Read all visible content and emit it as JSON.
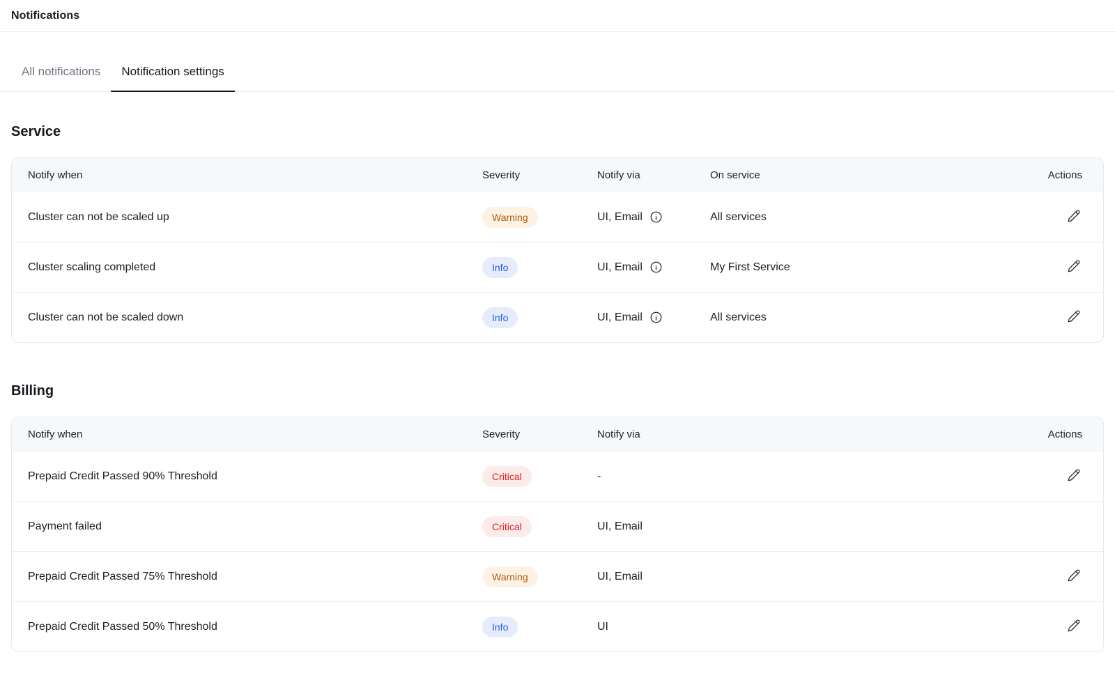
{
  "header": {
    "title": "Notifications"
  },
  "tabs": [
    {
      "label": "All notifications",
      "active": false
    },
    {
      "label": "Notification settings",
      "active": true
    }
  ],
  "severity_colors": {
    "Warning": {
      "text": "#b05a0f",
      "bg": "#fdf2e3"
    },
    "Info": {
      "text": "#2060e8",
      "bg": "#e6ecfc"
    },
    "Critical": {
      "text": "#dd2020",
      "bg": "#fcebea"
    }
  },
  "sections": [
    {
      "heading": "Service",
      "columns": [
        "Notify when",
        "Severity",
        "Notify via",
        "On service",
        "Actions"
      ],
      "rows": [
        {
          "notify_when": "Cluster can not be scaled up",
          "severity": "Warning",
          "notify_via": "UI, Email",
          "has_info_icon": true,
          "on_service": "All services",
          "has_edit": true
        },
        {
          "notify_when": "Cluster scaling completed",
          "severity": "Info",
          "notify_via": "UI, Email",
          "has_info_icon": true,
          "on_service": "My First Service",
          "has_edit": true
        },
        {
          "notify_when": "Cluster can not be scaled down",
          "severity": "Info",
          "notify_via": "UI, Email",
          "has_info_icon": true,
          "on_service": "All services",
          "has_edit": true
        }
      ]
    },
    {
      "heading": "Billing",
      "columns": [
        "Notify when",
        "Severity",
        "Notify via",
        "Actions"
      ],
      "rows": [
        {
          "notify_when": "Prepaid Credit Passed 90% Threshold",
          "severity": "Critical",
          "notify_via": "-",
          "has_info_icon": false,
          "has_edit": true
        },
        {
          "notify_when": "Payment failed",
          "severity": "Critical",
          "notify_via": "UI, Email",
          "has_info_icon": false,
          "has_edit": false
        },
        {
          "notify_when": "Prepaid Credit Passed 75% Threshold",
          "severity": "Warning",
          "notify_via": "UI, Email",
          "has_info_icon": false,
          "has_edit": true
        },
        {
          "notify_when": "Prepaid Credit Passed 50% Threshold",
          "severity": "Info",
          "notify_via": "UI",
          "has_info_icon": false,
          "has_edit": true
        }
      ]
    }
  ]
}
